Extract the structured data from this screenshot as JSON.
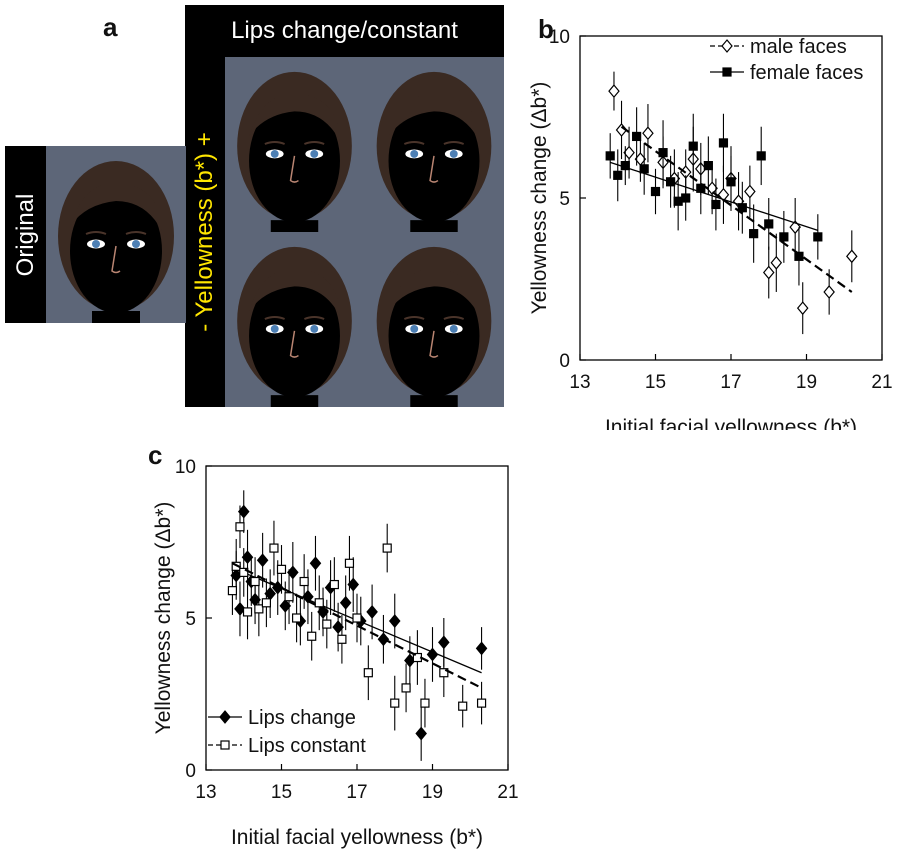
{
  "panel_a": {
    "letter": "a",
    "header": "Lips change/constant",
    "original_label": "Original",
    "axis_label": "- Yellowness (b*) +",
    "colors": {
      "header_text": "#ffffff",
      "axis_text": "#ffe600",
      "bar": "#000000",
      "backdrop": "#5d6678"
    }
  },
  "panel_b": {
    "letter": "b"
  },
  "panel_c": {
    "letter": "c"
  },
  "chart_data": [
    {
      "id": "b",
      "type": "scatter",
      "xlabel": "Initial facial yellowness (b*)",
      "ylabel": "Yellowness change (Δb*)",
      "xlim": [
        13,
        21
      ],
      "ylim": [
        0,
        10
      ],
      "xticks": [
        "13",
        "15",
        "17",
        "19",
        "21"
      ],
      "yticks": [
        "0",
        "5",
        "10"
      ],
      "legend_position": "top-right",
      "series": [
        {
          "name": "male faces",
          "marker": "open-diamond",
          "line": "dashed",
          "trend": [
            [
              14.1,
              7.2
            ],
            [
              20.2,
              2.1
            ]
          ],
          "points": [
            [
              13.9,
              8.3
            ],
            [
              14.1,
              7.1
            ],
            [
              14.3,
              6.4
            ],
            [
              14.6,
              6.2
            ],
            [
              14.8,
              7.0
            ],
            [
              15.2,
              6.1
            ],
            [
              15.5,
              5.6
            ],
            [
              15.8,
              5.8
            ],
            [
              16.0,
              6.2
            ],
            [
              16.2,
              5.9
            ],
            [
              16.5,
              5.3
            ],
            [
              16.8,
              5.1
            ],
            [
              17.0,
              5.6
            ],
            [
              17.2,
              4.9
            ],
            [
              17.5,
              5.2
            ],
            [
              18.0,
              2.7
            ],
            [
              18.2,
              3.0
            ],
            [
              18.7,
              4.1
            ],
            [
              18.9,
              1.6
            ],
            [
              19.6,
              2.1
            ],
            [
              20.2,
              3.2
            ]
          ],
          "err": [
            0.6,
            0.9,
            0.8,
            0.7,
            0.9,
            0.8,
            0.9,
            0.7,
            1.0,
            0.8,
            0.8,
            0.9,
            1.0,
            0.9,
            0.8,
            0.8,
            0.9,
            0.9,
            0.8,
            0.7,
            0.8
          ]
        },
        {
          "name": "female faces",
          "marker": "filled-square",
          "line": "solid",
          "trend": [
            [
              13.8,
              6.1
            ],
            [
              19.3,
              4.0
            ]
          ],
          "points": [
            [
              13.8,
              6.3
            ],
            [
              14.0,
              5.7
            ],
            [
              14.2,
              6.0
            ],
            [
              14.5,
              6.9
            ],
            [
              14.7,
              5.9
            ],
            [
              15.0,
              5.2
            ],
            [
              15.2,
              6.4
            ],
            [
              15.4,
              5.5
            ],
            [
              15.6,
              4.9
            ],
            [
              15.8,
              5.0
            ],
            [
              16.0,
              6.6
            ],
            [
              16.2,
              5.3
            ],
            [
              16.4,
              6.0
            ],
            [
              16.6,
              4.8
            ],
            [
              16.8,
              6.7
            ],
            [
              17.0,
              5.5
            ],
            [
              17.3,
              4.7
            ],
            [
              17.6,
              3.9
            ],
            [
              17.8,
              6.3
            ],
            [
              18.0,
              4.2
            ],
            [
              18.4,
              3.8
            ],
            [
              18.8,
              3.2
            ],
            [
              19.3,
              3.8
            ]
          ],
          "err": [
            0.7,
            0.8,
            0.6,
            0.9,
            0.8,
            0.7,
            1.0,
            0.8,
            0.9,
            0.7,
            1.0,
            0.8,
            0.9,
            0.8,
            0.9,
            0.8,
            0.8,
            0.9,
            0.9,
            0.8,
            0.8,
            0.9,
            0.7
          ]
        }
      ]
    },
    {
      "id": "c",
      "type": "scatter",
      "xlabel": "Initial facial yellowness (b*)",
      "ylabel": "Yellowness change (Δb*)",
      "xlim": [
        13,
        21
      ],
      "ylim": [
        0,
        10
      ],
      "xticks": [
        "13",
        "15",
        "17",
        "19",
        "21"
      ],
      "yticks": [
        "0",
        "5",
        "10"
      ],
      "legend_position": "bottom-left",
      "series": [
        {
          "name": "Lips change",
          "marker": "filled-diamond",
          "line": "solid",
          "trend": [
            [
              13.8,
              6.6
            ],
            [
              20.3,
              3.2
            ]
          ],
          "points": [
            [
              13.8,
              6.4
            ],
            [
              13.9,
              5.3
            ],
            [
              14.0,
              8.5
            ],
            [
              14.1,
              7.0
            ],
            [
              14.2,
              6.2
            ],
            [
              14.3,
              5.6
            ],
            [
              14.5,
              6.9
            ],
            [
              14.7,
              5.8
            ],
            [
              14.9,
              6.0
            ],
            [
              15.1,
              5.4
            ],
            [
              15.3,
              6.5
            ],
            [
              15.5,
              4.9
            ],
            [
              15.7,
              5.7
            ],
            [
              15.9,
              6.8
            ],
            [
              16.1,
              5.2
            ],
            [
              16.3,
              6.0
            ],
            [
              16.5,
              4.7
            ],
            [
              16.7,
              5.5
            ],
            [
              16.9,
              6.1
            ],
            [
              17.1,
              4.9
            ],
            [
              17.4,
              5.2
            ],
            [
              17.7,
              4.3
            ],
            [
              18.0,
              4.9
            ],
            [
              18.4,
              3.6
            ],
            [
              18.7,
              1.2
            ],
            [
              19.0,
              3.8
            ],
            [
              19.3,
              4.2
            ],
            [
              20.3,
              4.0
            ]
          ],
          "err": [
            0.8,
            0.9,
            0.7,
            0.9,
            0.8,
            0.8,
            0.9,
            0.8,
            0.9,
            0.8,
            1.0,
            0.8,
            0.9,
            0.9,
            0.8,
            0.9,
            0.8,
            0.9,
            0.9,
            0.8,
            0.9,
            0.8,
            0.9,
            0.8,
            0.9,
            0.9,
            0.8,
            0.7
          ]
        },
        {
          "name": "Lips constant",
          "marker": "open-square",
          "line": "dashed",
          "trend": [
            [
              13.7,
              6.8
            ],
            [
              20.3,
              2.7
            ]
          ],
          "points": [
            [
              13.7,
              5.9
            ],
            [
              13.8,
              6.7
            ],
            [
              13.9,
              8.0
            ],
            [
              14.0,
              6.5
            ],
            [
              14.1,
              5.2
            ],
            [
              14.3,
              6.2
            ],
            [
              14.4,
              5.3
            ],
            [
              14.6,
              5.5
            ],
            [
              14.8,
              7.3
            ],
            [
              15.0,
              6.6
            ],
            [
              15.2,
              5.7
            ],
            [
              15.4,
              5.0
            ],
            [
              15.6,
              6.2
            ],
            [
              15.8,
              4.4
            ],
            [
              16.0,
              5.5
            ],
            [
              16.2,
              4.8
            ],
            [
              16.4,
              6.1
            ],
            [
              16.6,
              4.3
            ],
            [
              16.8,
              6.8
            ],
            [
              17.0,
              5.0
            ],
            [
              17.3,
              3.2
            ],
            [
              17.8,
              7.3
            ],
            [
              18.0,
              2.2
            ],
            [
              18.3,
              2.7
            ],
            [
              18.6,
              3.7
            ],
            [
              18.8,
              2.2
            ],
            [
              19.3,
              3.2
            ],
            [
              19.8,
              2.1
            ],
            [
              20.3,
              2.2
            ]
          ],
          "err": [
            0.8,
            0.9,
            0.7,
            0.8,
            0.9,
            0.8,
            0.9,
            0.8,
            0.9,
            0.8,
            0.9,
            0.8,
            0.9,
            0.8,
            0.9,
            0.8,
            0.9,
            0.8,
            0.9,
            0.8,
            0.9,
            0.8,
            0.9,
            0.8,
            0.9,
            0.8,
            0.8,
            0.7,
            0.7
          ]
        }
      ]
    }
  ]
}
